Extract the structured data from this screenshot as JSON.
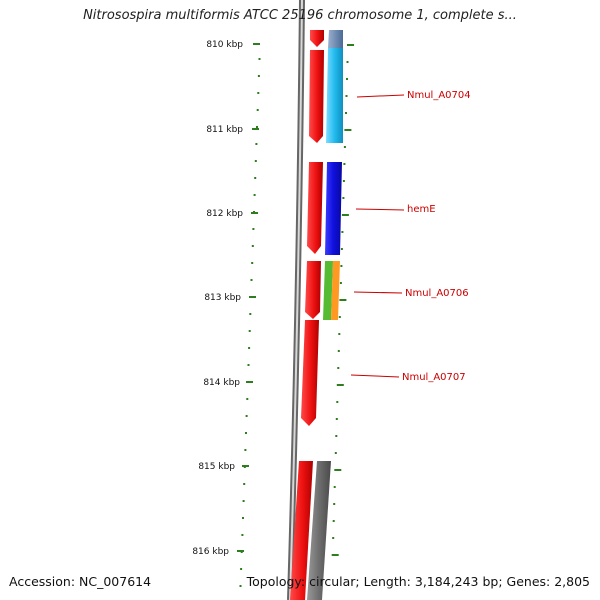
{
  "title": "Nitrosospira multiformis ATCC 25196 chromosome 1, complete s...",
  "ruler": {
    "labels": [
      "810 kbp",
      "811 kbp",
      "812 kbp",
      "813 kbp",
      "814 kbp",
      "815 kbp",
      "816 kbp"
    ]
  },
  "genes": [
    {
      "name": "Nmul_A0704",
      "color": "#cc0000"
    },
    {
      "name": "hemE",
      "color": "#cc0000"
    },
    {
      "name": "Nmul_A0706",
      "color": "#cc0000"
    },
    {
      "name": "Nmul_A0707",
      "color": "#cc0000"
    }
  ],
  "colors": {
    "gene_red": "#ee1111",
    "ortholog_cyan": "#22bbee",
    "ortholog_blue": "#1010dd",
    "ortholog_green": "#55bb33",
    "ortholog_orange": "#ff9922",
    "ortholog_gray": "#777777",
    "ortholog_slate": "#5a7aa6",
    "tick_green": "#2e7d1e",
    "backbone_gray": "#888888"
  },
  "footer": {
    "accession": "Accession: NC_007614",
    "summary": "Topology: circular; Length: 3,184,243 bp; Genes: 2,805"
  }
}
